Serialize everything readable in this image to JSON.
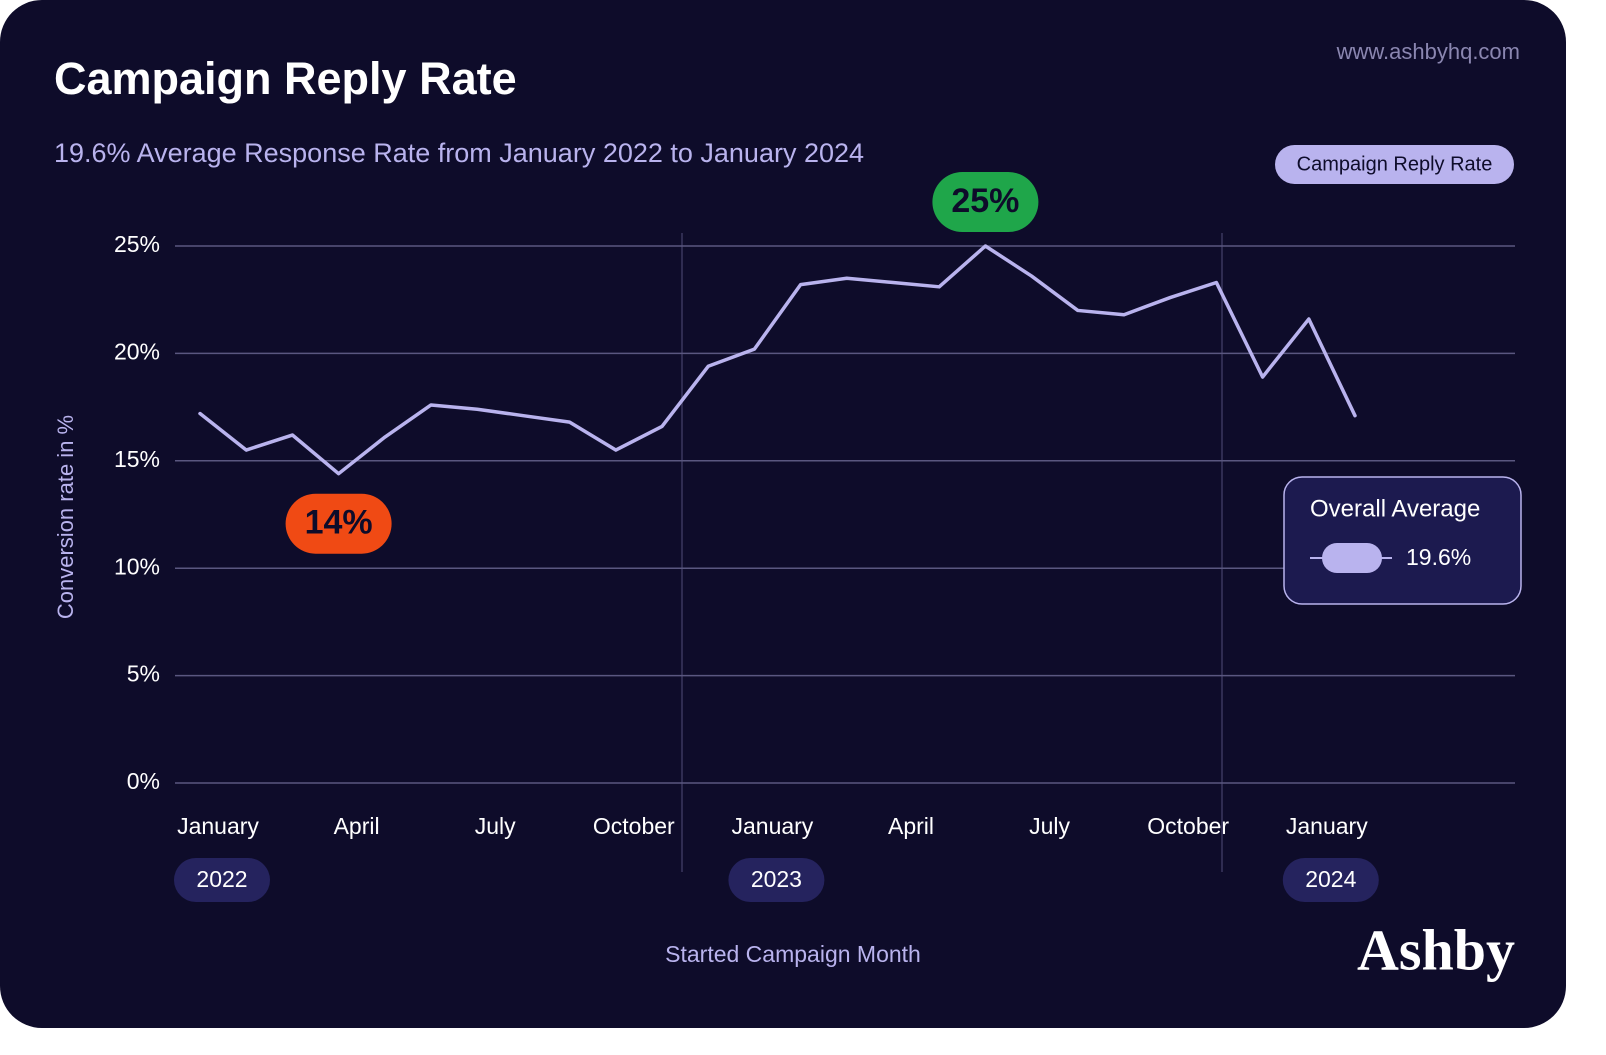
{
  "chart_data": {
    "type": "line",
    "title": "Campaign Reply Rate",
    "subtitle": "19.6% Average Response Rate from January 2022 to January 2024",
    "source": "www.ashbyhq.com",
    "brand": "Ashby",
    "x_label": "Started Campaign Month",
    "y_label": "Conversion rate in %",
    "categories": [
      "January",
      null,
      null,
      "April",
      null,
      null,
      "July",
      null,
      null,
      "October",
      null,
      null,
      "January",
      null,
      null,
      "April",
      null,
      null,
      "July",
      null,
      null,
      "October",
      null,
      null,
      "January",
      null
    ],
    "year_labels": [
      "2022",
      "2023",
      "2024"
    ],
    "series": [
      {
        "name": "Campaign Reply Rate",
        "color": "#b9b3ee",
        "values": [
          17.2,
          15.5,
          16.2,
          14.4,
          16.1,
          17.6,
          17.4,
          17.1,
          16.8,
          15.5,
          16.6,
          19.4,
          20.2,
          23.2,
          23.5,
          23.3,
          23.1,
          25.0,
          23.6,
          22.0,
          21.8,
          22.6,
          23.3,
          18.9,
          21.6,
          17.1
        ],
        "value_labels": [
          null,
          null,
          null,
          "14%",
          null,
          null,
          null,
          null,
          null,
          null,
          null,
          null,
          null,
          null,
          null,
          null,
          null,
          "25%",
          null,
          null,
          null,
          null,
          null,
          null,
          null,
          null
        ],
        "value_label_colors": [
          null,
          null,
          null,
          "#f04a14",
          null,
          null,
          null,
          null,
          null,
          null,
          null,
          null,
          null,
          null,
          null,
          null,
          null,
          "#1fa64a",
          null,
          null,
          null,
          null,
          null,
          null,
          null,
          null
        ]
      }
    ],
    "average_title": "Overall Average",
    "average_label": "19.6%",
    "ylim": [
      0,
      25
    ],
    "yticks": [
      {
        "value": 0,
        "label": "0%"
      },
      {
        "value": 5,
        "label": "5%"
      },
      {
        "value": 10,
        "label": "10%"
      },
      {
        "value": 15,
        "label": "15%"
      },
      {
        "value": 20,
        "label": "20%"
      },
      {
        "value": 25,
        "label": "25%"
      }
    ],
    "grid": true
  }
}
